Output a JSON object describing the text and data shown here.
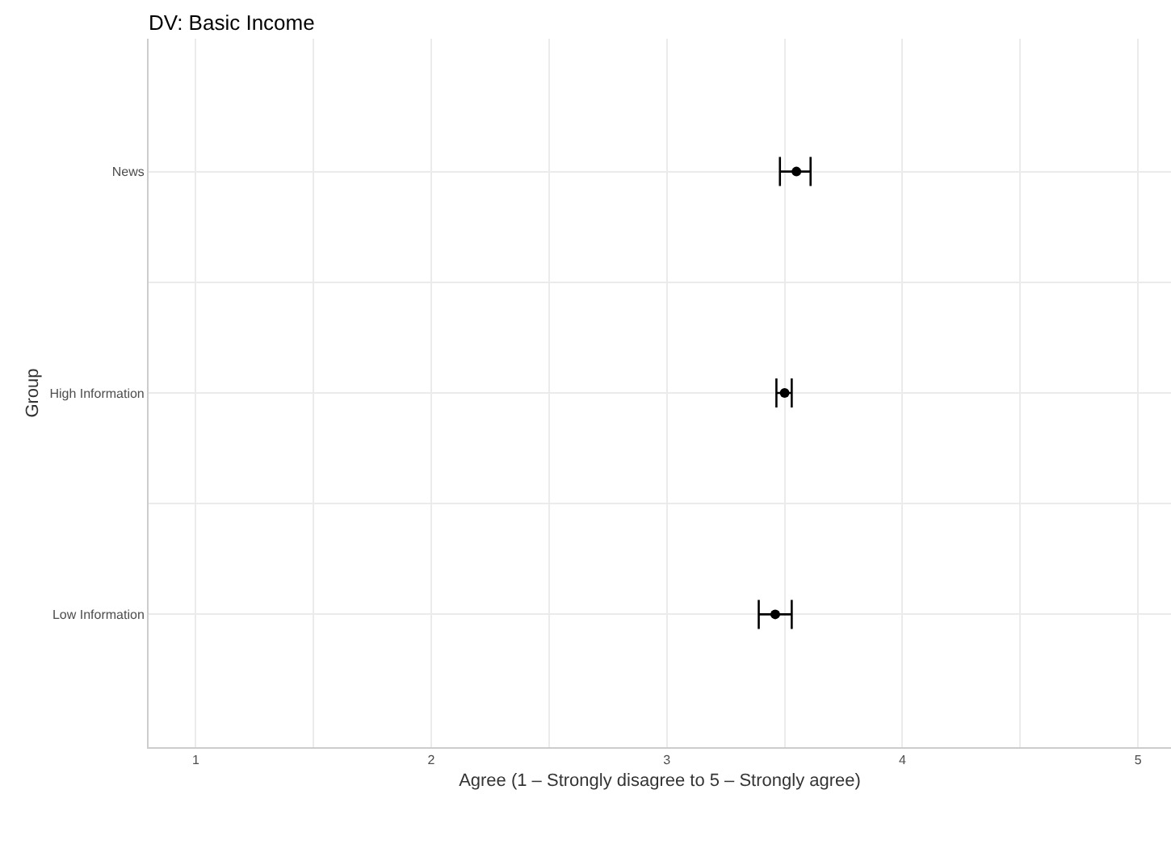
{
  "chart_data": {
    "type": "scatter",
    "orientation": "horizontal",
    "title": "DV: Basic Income",
    "xlabel": "Agree (1 – Strongly disagree to 5 – Strongly agree)",
    "ylabel": "Group",
    "categories": [
      "News",
      "High Information",
      "Low Information"
    ],
    "values": [
      3.55,
      3.5,
      3.46
    ],
    "errors": [
      [
        3.48,
        3.61
      ],
      [
        3.465,
        3.53
      ],
      [
        3.39,
        3.53
      ]
    ],
    "color": "#000000",
    "marker": "circle",
    "xlim": [
      0.8,
      5.14
    ],
    "xticks": [
      1,
      2,
      3,
      4,
      5
    ],
    "grid": true,
    "legend": false
  }
}
